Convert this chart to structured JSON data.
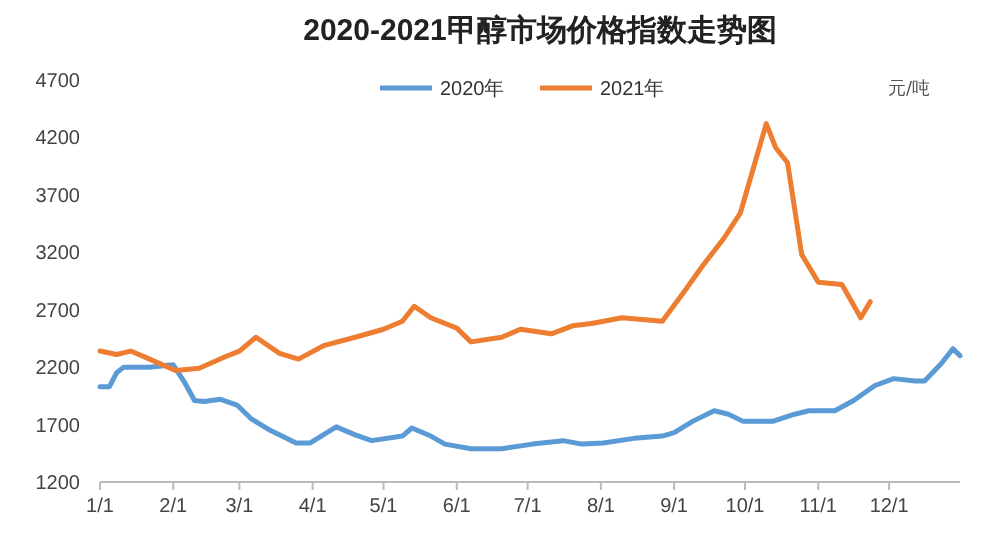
{
  "chart_data": {
    "type": "line",
    "title": "2020-2021甲醇市场价格指数走势图",
    "annotations": [
      "元/吨"
    ],
    "legend": "top",
    "grid": false,
    "line_style": "solid",
    "xlim": [
      "--01-01",
      "--12-31"
    ],
    "xticks": [
      {
        "value": "--01-01",
        "label": "1/1"
      },
      {
        "value": "--02-01",
        "label": "2/1"
      },
      {
        "value": "--03-01",
        "label": "3/1"
      },
      {
        "value": "--04-01",
        "label": "4/1"
      },
      {
        "value": "--05-01",
        "label": "5/1"
      },
      {
        "value": "--06-01",
        "label": "6/1"
      },
      {
        "value": "--07-01",
        "label": "7/1"
      },
      {
        "value": "--08-01",
        "label": "8/1"
      },
      {
        "value": "--09-01",
        "label": "9/1"
      },
      {
        "value": "--10-01",
        "label": "10/1"
      },
      {
        "value": "--11-01",
        "label": "11/1"
      },
      {
        "value": "--12-01",
        "label": "12/1"
      }
    ],
    "ylim": [
      1200,
      4700
    ],
    "yticks": [
      1200,
      1700,
      2200,
      2700,
      3200,
      3700,
      4200,
      4700
    ],
    "series": [
      {
        "name": "2020年",
        "color": "#5b9bd5",
        "x": [
          "--01-01",
          "--01-05",
          "--01-08",
          "--01-11",
          "--01-22",
          "--02-01",
          "--02-06",
          "--02-10",
          "--02-14",
          "--02-21",
          "--02-28",
          "--03-06",
          "--03-14",
          "--03-25",
          "--03-31",
          "--04-11",
          "--04-19",
          "--04-26",
          "--05-09",
          "--05-13",
          "--05-21",
          "--05-27",
          "--06-07",
          "--06-20",
          "--07-03",
          "--07-16",
          "--07-24",
          "--08-02",
          "--08-15",
          "--08-27",
          "--09-01",
          "--09-09",
          "--09-18",
          "--09-24",
          "--09-30",
          "--10-13",
          "--10-22",
          "--10-28",
          "--11-08",
          "--11-16",
          "--11-25",
          "--12-03",
          "--12-12",
          "--12-16",
          "--12-23",
          "--12-28",
          "--12-31"
        ],
        "values": [
          2030,
          2030,
          2150,
          2200,
          2200,
          2220,
          2060,
          1910,
          1900,
          1920,
          1870,
          1750,
          1650,
          1540,
          1540,
          1680,
          1610,
          1560,
          1600,
          1670,
          1600,
          1530,
          1490,
          1490,
          1530,
          1560,
          1530,
          1540,
          1580,
          1600,
          1630,
          1730,
          1820,
          1790,
          1730,
          1730,
          1790,
          1820,
          1820,
          1910,
          2040,
          2100,
          2080,
          2080,
          2230,
          2360,
          2300
        ]
      },
      {
        "name": "2021年",
        "color": "#ed7d31",
        "x": [
          "--01-01",
          "--01-08",
          "--01-14",
          "--01-22",
          "--02-02",
          "--02-12",
          "--02-23",
          "--03-01",
          "--03-08",
          "--03-18",
          "--03-26",
          "--04-06",
          "--04-19",
          "--05-01",
          "--05-09",
          "--05-14",
          "--05-21",
          "--06-01",
          "--06-07",
          "--06-20",
          "--06-28",
          "--07-11",
          "--07-20",
          "--07-28",
          "--08-10",
          "--08-27",
          "--09-05",
          "--09-13",
          "--09-22",
          "--09-29",
          "--10-10",
          "--10-14",
          "--10-19",
          "--10-25",
          "--11-01",
          "--11-11",
          "--11-19",
          "--11-23"
        ],
        "values": [
          2340,
          2310,
          2340,
          2270,
          2170,
          2190,
          2290,
          2340,
          2460,
          2320,
          2270,
          2390,
          2460,
          2530,
          2600,
          2730,
          2630,
          2540,
          2420,
          2460,
          2530,
          2490,
          2560,
          2580,
          2630,
          2600,
          2850,
          3080,
          3320,
          3540,
          4320,
          4110,
          3980,
          3180,
          2940,
          2920,
          2630,
          2770
        ]
      }
    ]
  }
}
